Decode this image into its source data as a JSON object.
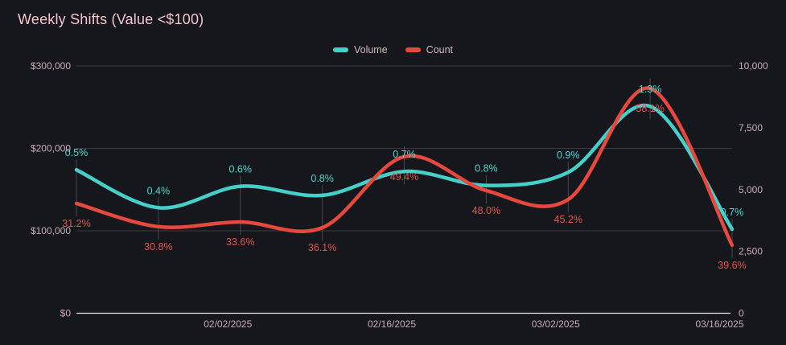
{
  "chart_data": {
    "type": "line",
    "title": "Weekly Shifts (Value <$100)",
    "legend_position": "top",
    "grid": true,
    "num_points": 9,
    "x_axis": {
      "tick_labels": [
        "02/02/2025",
        "02/16/2025",
        "03/02/2025",
        "03/16/2025"
      ],
      "tick_point_indices": [
        2,
        4,
        6,
        8
      ]
    },
    "left_axis": {
      "range": [
        0,
        300000
      ],
      "tick_values": [
        0,
        100000,
        200000,
        300000
      ],
      "tick_labels": [
        "$0",
        "$100,000",
        "$200,000",
        "$300,000"
      ]
    },
    "right_axis": {
      "range": [
        0,
        10000
      ],
      "tick_values": [
        0,
        2500,
        5000,
        7500,
        10000
      ],
      "tick_labels": [
        "0",
        "2,500",
        "5,000",
        "7,500",
        "10,000"
      ]
    },
    "series": [
      {
        "name": "Volume",
        "axis": "left",
        "color": "#46cfc9",
        "label_color": "#4ed8d2",
        "label_side": "above",
        "values": [
          174000,
          128000,
          154000,
          143000,
          172000,
          155000,
          171000,
          251000,
          102000
        ],
        "point_labels": [
          "0.5%",
          "0.4%",
          "0.6%",
          "0.8%",
          "0.7%",
          "0.8%",
          "0.9%",
          "1.3%",
          "0.7%"
        ]
      },
      {
        "name": "Count",
        "axis": "right",
        "color": "#e6483e",
        "label_color": "#e2564b",
        "label_side": "below",
        "values": [
          4440,
          3500,
          3690,
          3460,
          6330,
          4960,
          4600,
          9090,
          2750
        ],
        "point_labels": [
          "31.2%",
          "30.8%",
          "33.6%",
          "36.1%",
          "49.4%",
          "48.0%",
          "45.2%",
          "58.1%",
          "39.6%"
        ]
      }
    ],
    "colors": {
      "background": "#16171c",
      "title_text": "#f2c4cb",
      "axis_text": "#c9abb2",
      "grid_line": "#393a40",
      "zero_axis_line": "#e8e6e7",
      "point_tick_line": "#46474d"
    }
  }
}
